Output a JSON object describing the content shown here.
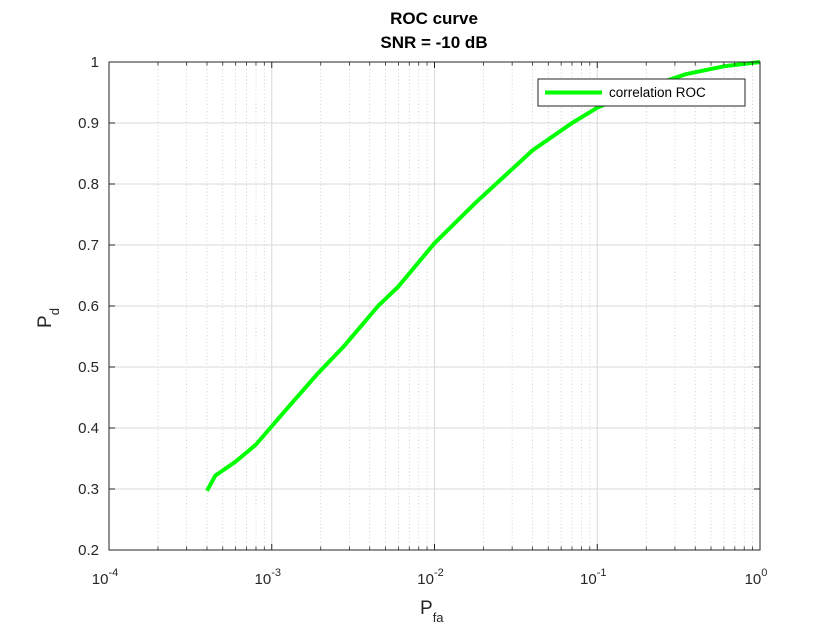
{
  "chart_data": {
    "type": "line",
    "title": [
      "ROC curve",
      "SNR = -10 dB"
    ],
    "xlabel": "P",
    "xlabel_sub": "fa",
    "ylabel": "P",
    "ylabel_sub": "d",
    "xscale": "log",
    "xlim": [
      0.0001,
      1
    ],
    "ylim": [
      0.2,
      1
    ],
    "x_ticks": [
      {
        "base": "10",
        "exp": "-4",
        "value": 0.0001
      },
      {
        "base": "10",
        "exp": "-3",
        "value": 0.001
      },
      {
        "base": "10",
        "exp": "-2",
        "value": 0.01
      },
      {
        "base": "10",
        "exp": "-1",
        "value": 0.1
      },
      {
        "base": "10",
        "exp": "0",
        "value": 1
      }
    ],
    "y_ticks": [
      "0.2",
      "0.3",
      "0.4",
      "0.5",
      "0.6",
      "0.7",
      "0.8",
      "0.9",
      "1"
    ],
    "grid": true,
    "legend_position": "top-right",
    "series": [
      {
        "name": "correlation ROC",
        "color": "#00ff00",
        "x": [
          0.0004,
          0.00045,
          0.0006,
          0.0008,
          0.001,
          0.0013,
          0.0019,
          0.0028,
          0.0045,
          0.006,
          0.01,
          0.018,
          0.04,
          0.07,
          0.1,
          0.2,
          0.35,
          0.6,
          1.0
        ],
        "y": [
          0.297,
          0.322,
          0.345,
          0.373,
          0.403,
          0.438,
          0.488,
          0.535,
          0.6,
          0.632,
          0.703,
          0.77,
          0.855,
          0.9,
          0.925,
          0.958,
          0.98,
          0.993,
          1.0
        ]
      }
    ]
  }
}
